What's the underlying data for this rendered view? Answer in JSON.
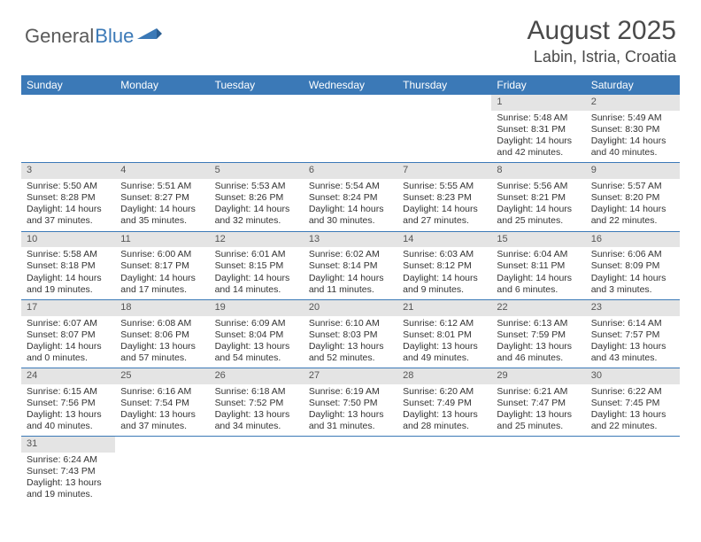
{
  "logo": {
    "part1": "General",
    "part2": "Blue"
  },
  "title": "August 2025",
  "location": "Labin, Istria, Croatia",
  "colors": {
    "accent": "#3b79b7",
    "header_text": "#ffffff",
    "daynum_bg": "#e4e4e4",
    "text": "#333333",
    "logo_gray": "#5a5a5a"
  },
  "day_headers": [
    "Sunday",
    "Monday",
    "Tuesday",
    "Wednesday",
    "Thursday",
    "Friday",
    "Saturday"
  ],
  "weeks": [
    [
      null,
      null,
      null,
      null,
      null,
      {
        "n": "1",
        "sr": "Sunrise: 5:48 AM",
        "ss": "Sunset: 8:31 PM",
        "d1": "Daylight: 14 hours",
        "d2": "and 42 minutes."
      },
      {
        "n": "2",
        "sr": "Sunrise: 5:49 AM",
        "ss": "Sunset: 8:30 PM",
        "d1": "Daylight: 14 hours",
        "d2": "and 40 minutes."
      }
    ],
    [
      {
        "n": "3",
        "sr": "Sunrise: 5:50 AM",
        "ss": "Sunset: 8:28 PM",
        "d1": "Daylight: 14 hours",
        "d2": "and 37 minutes."
      },
      {
        "n": "4",
        "sr": "Sunrise: 5:51 AM",
        "ss": "Sunset: 8:27 PM",
        "d1": "Daylight: 14 hours",
        "d2": "and 35 minutes."
      },
      {
        "n": "5",
        "sr": "Sunrise: 5:53 AM",
        "ss": "Sunset: 8:26 PM",
        "d1": "Daylight: 14 hours",
        "d2": "and 32 minutes."
      },
      {
        "n": "6",
        "sr": "Sunrise: 5:54 AM",
        "ss": "Sunset: 8:24 PM",
        "d1": "Daylight: 14 hours",
        "d2": "and 30 minutes."
      },
      {
        "n": "7",
        "sr": "Sunrise: 5:55 AM",
        "ss": "Sunset: 8:23 PM",
        "d1": "Daylight: 14 hours",
        "d2": "and 27 minutes."
      },
      {
        "n": "8",
        "sr": "Sunrise: 5:56 AM",
        "ss": "Sunset: 8:21 PM",
        "d1": "Daylight: 14 hours",
        "d2": "and 25 minutes."
      },
      {
        "n": "9",
        "sr": "Sunrise: 5:57 AM",
        "ss": "Sunset: 8:20 PM",
        "d1": "Daylight: 14 hours",
        "d2": "and 22 minutes."
      }
    ],
    [
      {
        "n": "10",
        "sr": "Sunrise: 5:58 AM",
        "ss": "Sunset: 8:18 PM",
        "d1": "Daylight: 14 hours",
        "d2": "and 19 minutes."
      },
      {
        "n": "11",
        "sr": "Sunrise: 6:00 AM",
        "ss": "Sunset: 8:17 PM",
        "d1": "Daylight: 14 hours",
        "d2": "and 17 minutes."
      },
      {
        "n": "12",
        "sr": "Sunrise: 6:01 AM",
        "ss": "Sunset: 8:15 PM",
        "d1": "Daylight: 14 hours",
        "d2": "and 14 minutes."
      },
      {
        "n": "13",
        "sr": "Sunrise: 6:02 AM",
        "ss": "Sunset: 8:14 PM",
        "d1": "Daylight: 14 hours",
        "d2": "and 11 minutes."
      },
      {
        "n": "14",
        "sr": "Sunrise: 6:03 AM",
        "ss": "Sunset: 8:12 PM",
        "d1": "Daylight: 14 hours",
        "d2": "and 9 minutes."
      },
      {
        "n": "15",
        "sr": "Sunrise: 6:04 AM",
        "ss": "Sunset: 8:11 PM",
        "d1": "Daylight: 14 hours",
        "d2": "and 6 minutes."
      },
      {
        "n": "16",
        "sr": "Sunrise: 6:06 AM",
        "ss": "Sunset: 8:09 PM",
        "d1": "Daylight: 14 hours",
        "d2": "and 3 minutes."
      }
    ],
    [
      {
        "n": "17",
        "sr": "Sunrise: 6:07 AM",
        "ss": "Sunset: 8:07 PM",
        "d1": "Daylight: 14 hours",
        "d2": "and 0 minutes."
      },
      {
        "n": "18",
        "sr": "Sunrise: 6:08 AM",
        "ss": "Sunset: 8:06 PM",
        "d1": "Daylight: 13 hours",
        "d2": "and 57 minutes."
      },
      {
        "n": "19",
        "sr": "Sunrise: 6:09 AM",
        "ss": "Sunset: 8:04 PM",
        "d1": "Daylight: 13 hours",
        "d2": "and 54 minutes."
      },
      {
        "n": "20",
        "sr": "Sunrise: 6:10 AM",
        "ss": "Sunset: 8:03 PM",
        "d1": "Daylight: 13 hours",
        "d2": "and 52 minutes."
      },
      {
        "n": "21",
        "sr": "Sunrise: 6:12 AM",
        "ss": "Sunset: 8:01 PM",
        "d1": "Daylight: 13 hours",
        "d2": "and 49 minutes."
      },
      {
        "n": "22",
        "sr": "Sunrise: 6:13 AM",
        "ss": "Sunset: 7:59 PM",
        "d1": "Daylight: 13 hours",
        "d2": "and 46 minutes."
      },
      {
        "n": "23",
        "sr": "Sunrise: 6:14 AM",
        "ss": "Sunset: 7:57 PM",
        "d1": "Daylight: 13 hours",
        "d2": "and 43 minutes."
      }
    ],
    [
      {
        "n": "24",
        "sr": "Sunrise: 6:15 AM",
        "ss": "Sunset: 7:56 PM",
        "d1": "Daylight: 13 hours",
        "d2": "and 40 minutes."
      },
      {
        "n": "25",
        "sr": "Sunrise: 6:16 AM",
        "ss": "Sunset: 7:54 PM",
        "d1": "Daylight: 13 hours",
        "d2": "and 37 minutes."
      },
      {
        "n": "26",
        "sr": "Sunrise: 6:18 AM",
        "ss": "Sunset: 7:52 PM",
        "d1": "Daylight: 13 hours",
        "d2": "and 34 minutes."
      },
      {
        "n": "27",
        "sr": "Sunrise: 6:19 AM",
        "ss": "Sunset: 7:50 PM",
        "d1": "Daylight: 13 hours",
        "d2": "and 31 minutes."
      },
      {
        "n": "28",
        "sr": "Sunrise: 6:20 AM",
        "ss": "Sunset: 7:49 PM",
        "d1": "Daylight: 13 hours",
        "d2": "and 28 minutes."
      },
      {
        "n": "29",
        "sr": "Sunrise: 6:21 AM",
        "ss": "Sunset: 7:47 PM",
        "d1": "Daylight: 13 hours",
        "d2": "and 25 minutes."
      },
      {
        "n": "30",
        "sr": "Sunrise: 6:22 AM",
        "ss": "Sunset: 7:45 PM",
        "d1": "Daylight: 13 hours",
        "d2": "and 22 minutes."
      }
    ],
    [
      {
        "n": "31",
        "sr": "Sunrise: 6:24 AM",
        "ss": "Sunset: 7:43 PM",
        "d1": "Daylight: 13 hours",
        "d2": "and 19 minutes."
      },
      null,
      null,
      null,
      null,
      null,
      null
    ]
  ]
}
